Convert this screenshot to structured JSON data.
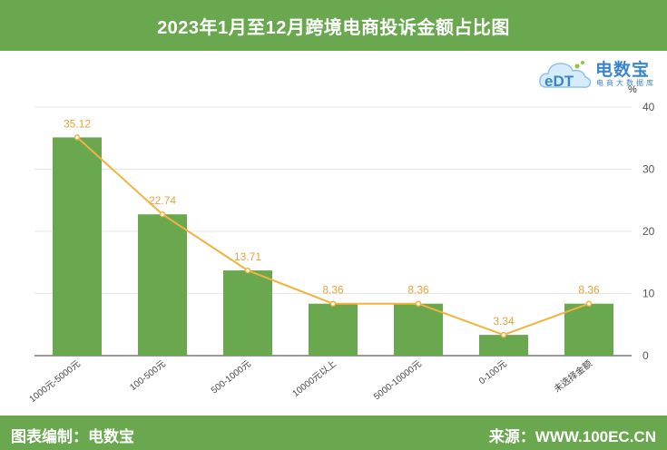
{
  "header": {
    "title": "2023年1月至12月跨境电商投诉金额占比图"
  },
  "logo": {
    "name": "电数宝",
    "tagline": "电商大数据库",
    "icon": "edt-cloud-logo-icon"
  },
  "footer": {
    "left": "图表编制：电数宝",
    "right": "来源：WWW.100EC.CN"
  },
  "colors": {
    "header_bg": "#6aa84f",
    "bar": "#6aa84f",
    "line": "#f2b33d",
    "label": "#e7a23a",
    "logo": "#3b86c9"
  },
  "chart_data": {
    "type": "bar",
    "title": "2023年1月至12月跨境电商投诉金额占比图",
    "y_unit": "%",
    "xlabel": "",
    "ylabel": "",
    "ylim": [
      0,
      40
    ],
    "yticks": [
      0,
      10,
      20,
      30,
      40
    ],
    "grid": true,
    "categories": [
      "1000元-5000元",
      "100-500元",
      "500-1000元",
      "10000元以上",
      "5000-10000元",
      "0-100元",
      "未选择金额"
    ],
    "series": [
      {
        "type": "bar",
        "values": [
          35.12,
          22.74,
          13.71,
          8.36,
          8.36,
          3.34,
          8.36
        ]
      },
      {
        "type": "line",
        "values": [
          35.12,
          22.74,
          13.71,
          8.36,
          8.36,
          3.34,
          8.36
        ]
      }
    ],
    "data_labels": [
      "35.12",
      "22.74",
      "13.71",
      "8.36",
      "8.36",
      "3.34",
      "8.36"
    ]
  }
}
